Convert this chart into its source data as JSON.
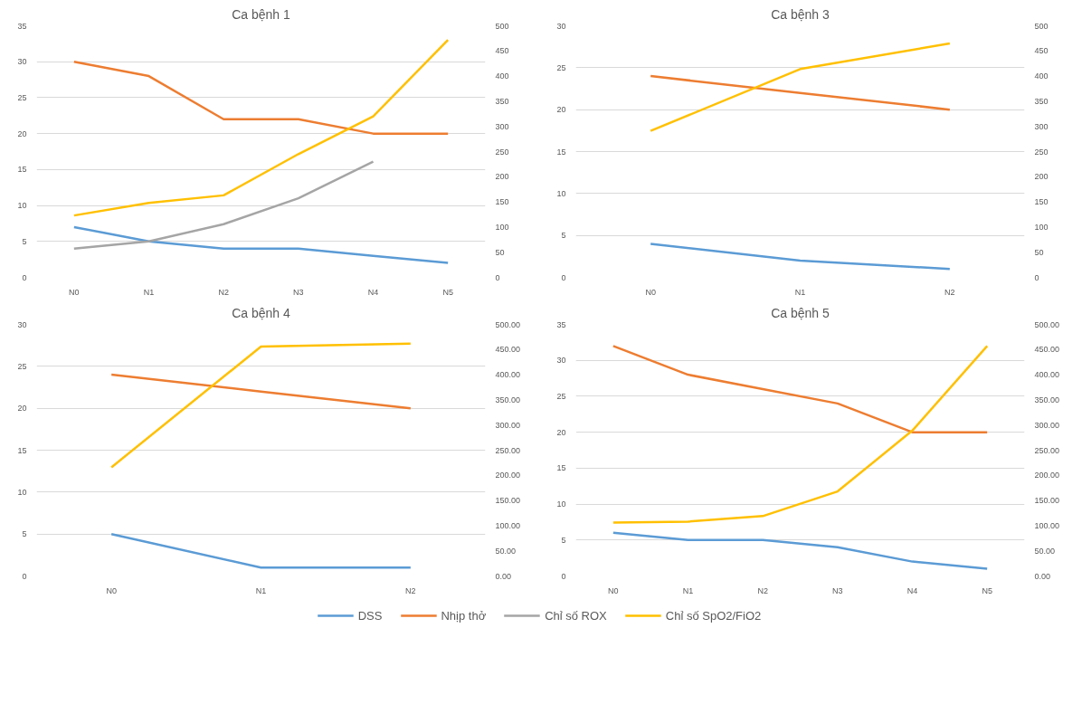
{
  "chart_data": [
    {
      "type": "line",
      "title": "Ca bệnh 1",
      "categories": [
        "N0",
        "N1",
        "N2",
        "N3",
        "N4",
        "N5"
      ],
      "ylim": [
        0,
        35
      ],
      "yticks": [
        0,
        5,
        10,
        15,
        20,
        25,
        30,
        35
      ],
      "y2lim": [
        0,
        500
      ],
      "y2ticks": [
        0,
        50,
        100,
        150,
        200,
        250,
        300,
        350,
        400,
        450,
        500
      ],
      "grid": "y",
      "legend": "bottom",
      "series": [
        {
          "name": "DSS",
          "color": "#5b9bd5",
          "values": [
            7,
            5,
            4,
            4,
            3,
            2
          ]
        },
        {
          "name": "Nhịp thở",
          "color": "#ed7d31",
          "values": [
            30,
            28,
            22,
            22,
            20,
            20
          ]
        },
        {
          "name": "Chỉ số ROX",
          "color": "#a5a5a5",
          "values": [
            4,
            5,
            7.4,
            11,
            16.1,
            null
          ]
        },
        {
          "name": "Chỉ số SpO2/FiO2",
          "color": "#ffc000",
          "axis": "y2",
          "values": [
            123,
            148,
            163,
            245,
            320,
            472
          ]
        }
      ]
    },
    {
      "type": "line",
      "title": "Ca bệnh 3",
      "categories": [
        "N0",
        "N1",
        "N2"
      ],
      "ylim": [
        0,
        30
      ],
      "yticks": [
        0,
        5,
        10,
        15,
        20,
        25,
        30
      ],
      "y2lim": [
        0,
        500
      ],
      "y2ticks": [
        0,
        50,
        100,
        150,
        200,
        250,
        300,
        350,
        400,
        450,
        500
      ],
      "grid": "y",
      "legend": "bottom",
      "series": [
        {
          "name": "DSS",
          "color": "#5b9bd5",
          "values": [
            4,
            2,
            1
          ]
        },
        {
          "name": "Nhịp thở",
          "color": "#ed7d31",
          "values": [
            24,
            22,
            20
          ]
        },
        {
          "name": "Chỉ số SpO2/FiO2",
          "color": "#ffc000",
          "axis": "y2",
          "values": [
            291,
            414,
            465
          ]
        }
      ]
    },
    {
      "type": "line",
      "title": "Ca bệnh 4",
      "categories": [
        "N0",
        "N1",
        "N2"
      ],
      "ylim": [
        0,
        30
      ],
      "yticks": [
        0,
        5,
        10,
        15,
        20,
        25,
        30
      ],
      "y2lim": [
        0,
        500
      ],
      "y2ticks": [
        {
          "value": 0,
          "label": "0.00"
        },
        {
          "value": 50,
          "label": "50.00"
        },
        {
          "value": 100,
          "label": "100.00"
        },
        {
          "value": 150,
          "label": "150.00"
        },
        {
          "value": 200,
          "label": "200.00"
        },
        {
          "value": 250,
          "label": "250.00"
        },
        {
          "value": 300,
          "label": "300.00"
        },
        {
          "value": 350,
          "label": "350.00"
        },
        {
          "value": 400,
          "label": "400.00"
        },
        {
          "value": 450,
          "label": "450.00"
        },
        {
          "value": 500,
          "label": "500.00"
        }
      ],
      "grid": "y",
      "legend": "bottom",
      "series": [
        {
          "name": "DSS",
          "color": "#5b9bd5",
          "values": [
            5,
            1,
            1
          ]
        },
        {
          "name": "Nhịp thở",
          "color": "#ed7d31",
          "values": [
            24,
            22,
            20
          ]
        },
        {
          "name": "Chỉ số SpO2/FiO2",
          "color": "#ffc000",
          "axis": "y2",
          "values": [
            216,
            456,
            462
          ]
        }
      ]
    },
    {
      "type": "line",
      "title": "Ca bệnh 5",
      "categories": [
        "N0",
        "N1",
        "N2",
        "N3",
        "N4",
        "N5"
      ],
      "ylim": [
        0,
        35
      ],
      "yticks": [
        0,
        5,
        10,
        15,
        20,
        25,
        30,
        35
      ],
      "y2lim": [
        0,
        500
      ],
      "y2ticks": [
        {
          "value": 0,
          "label": "0.00"
        },
        {
          "value": 50,
          "label": "50.00"
        },
        {
          "value": 100,
          "label": "100.00"
        },
        {
          "value": 150,
          "label": "150.00"
        },
        {
          "value": 200,
          "label": "200.00"
        },
        {
          "value": 250,
          "label": "250.00"
        },
        {
          "value": 300,
          "label": "300.00"
        },
        {
          "value": 350,
          "label": "350.00"
        },
        {
          "value": 400,
          "label": "400.00"
        },
        {
          "value": 450,
          "label": "450.00"
        },
        {
          "value": 500,
          "label": "500.00"
        }
      ],
      "grid": "y",
      "legend": "bottom",
      "series": [
        {
          "name": "DSS",
          "color": "#5b9bd5",
          "values": [
            6,
            5,
            5,
            4,
            2,
            1
          ]
        },
        {
          "name": "Nhịp thở",
          "color": "#ed7d31",
          "values": [
            32,
            28,
            26,
            24,
            20,
            20
          ]
        },
        {
          "name": "Chỉ số SpO2/FiO2",
          "color": "#ffc000",
          "axis": "y2",
          "values": [
            106,
            108,
            119,
            168,
            289,
            457
          ]
        }
      ]
    }
  ]
}
